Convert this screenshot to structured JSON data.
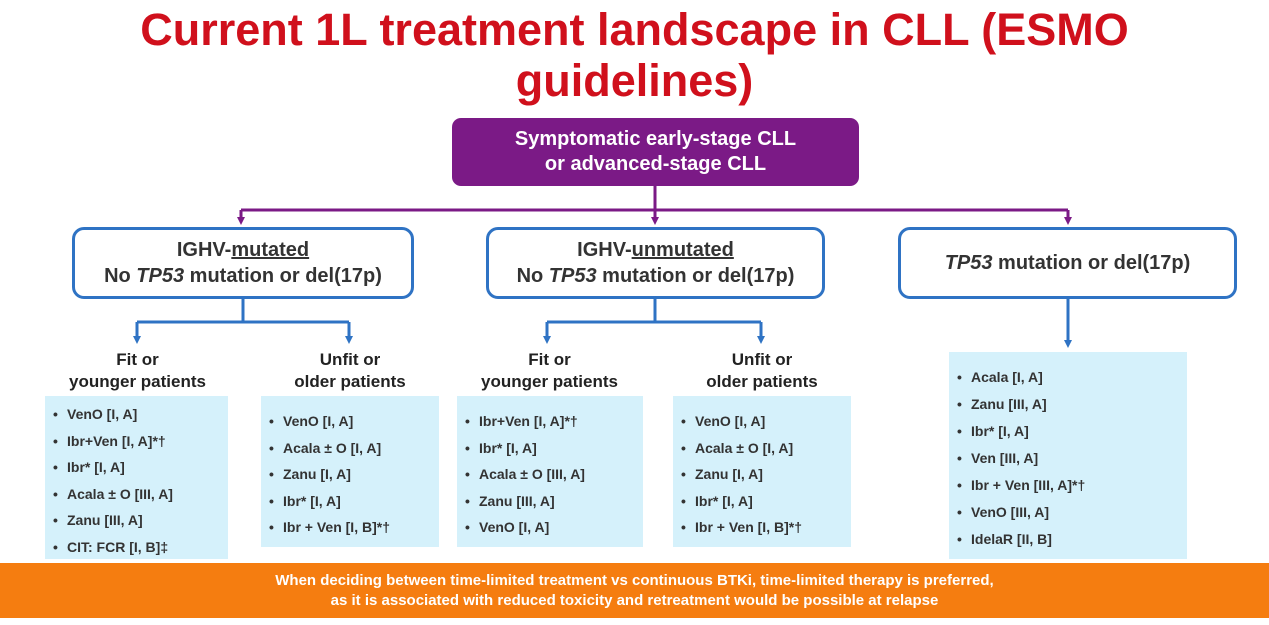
{
  "title": {
    "line1": "Current 1L treatment landscape in CLL (ESMO",
    "line2": "guidelines)"
  },
  "root": {
    "line1": "Symptomatic early-stage CLL",
    "line2": "or advanced-stage CLL"
  },
  "groups": {
    "mutated": {
      "prefix": "IGHV-",
      "keyword": "mutated",
      "line2_pre": "No ",
      "gene": "TP53",
      "line2_post": " mutation or del(17p)"
    },
    "unmutated": {
      "prefix": "IGHV-",
      "keyword": "unmutated",
      "line2_pre": "No ",
      "gene": "TP53",
      "line2_post": " mutation or del(17p)"
    },
    "tp53": {
      "gene": "TP53",
      "post": " mutation or del(17p)"
    }
  },
  "subgroups": {
    "mut_fit": {
      "line1": "Fit or",
      "line2": "younger patients",
      "items": [
        "VenO [I, A]",
        "Ibr+Ven [I, A]*†",
        "Ibr* [I, A]",
        "Acala ± O [III, A]",
        "Zanu [III, A]",
        "CIT: FCR [I, B]‡"
      ]
    },
    "mut_unfit": {
      "line1": "Unfit or",
      "line2": "older patients",
      "items": [
        "VenO [I, A]",
        "Acala ± O [I, A]",
        "Zanu [I, A]",
        "Ibr* [I, A]",
        "Ibr + Ven [I, B]*†"
      ]
    },
    "unmut_fit": {
      "line1": "Fit or",
      "line2": "younger patients",
      "items": [
        "Ibr+Ven [I, A]*†",
        "Ibr* [I, A]",
        "Acala ± O [III, A]",
        "Zanu [III, A]",
        "VenO [I, A]"
      ]
    },
    "unmut_unfit": {
      "line1": "Unfit or",
      "line2": "older patients",
      "items": [
        "VenO [I, A]",
        "Acala ± O [I, A]",
        "Zanu [I, A]",
        "Ibr* [I, A]",
        "Ibr + Ven [I, B]*†"
      ]
    },
    "tp53": {
      "items": [
        "Acala [I, A]",
        "Zanu [III, A]",
        "Ibr* [I, A]",
        "Ven [III, A]",
        "Ibr + Ven [III, A]*†",
        "VenO [III, A]",
        "IdelaR [II, B]"
      ]
    }
  },
  "banner": {
    "line1": "When deciding between time-limited treatment vs continuous BTKi, time-limited therapy is preferred,",
    "line2": "as it is associated with reduced toxicity and retreatment would be possible at relapse"
  },
  "colors": {
    "title": "#d0101c",
    "root": "#7b1a86",
    "group_border": "#2f73c4",
    "box": "#d5f1fb",
    "banner": "#f57d10"
  }
}
